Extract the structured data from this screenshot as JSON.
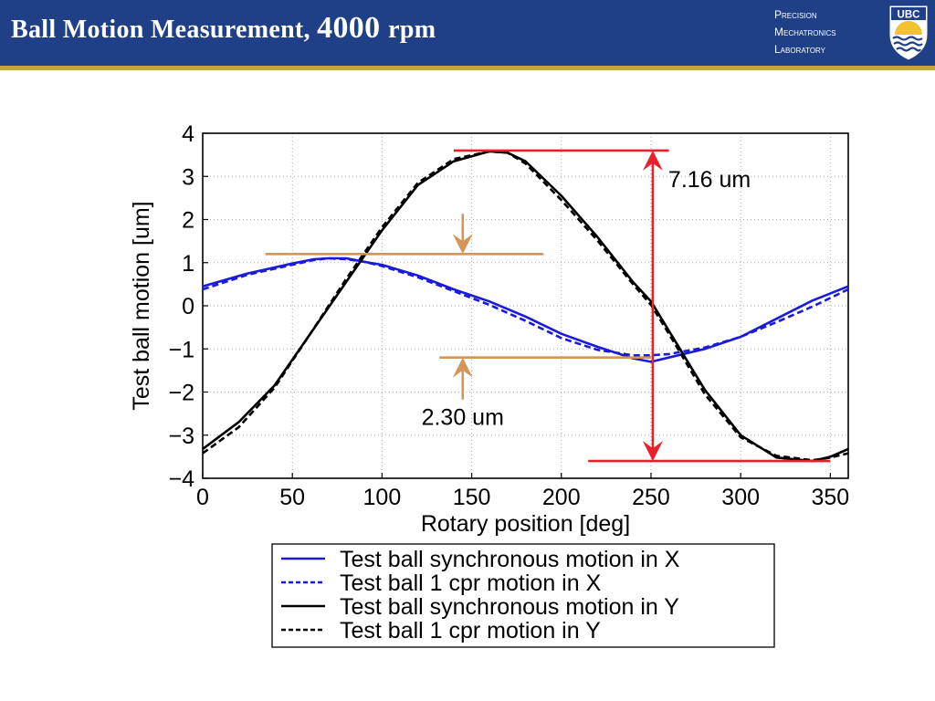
{
  "slide": {
    "title_main": "Ball Motion Measurement, ",
    "title_value": "4000 ",
    "title_unit": "rpm",
    "lab_lines": [
      "Precision",
      "Mechatronics",
      "Laboratory"
    ],
    "logo_text": "UBC",
    "colors": {
      "header_bg": "#1f3f86",
      "header_rule": "#c9a24a",
      "logo_gold": "#f2c230"
    }
  },
  "chart_data": {
    "type": "line",
    "xlabel": "Rotary position [deg]",
    "ylabel": "Test ball motion [um]",
    "xlim": [
      0,
      360
    ],
    "ylim": [
      -4,
      4
    ],
    "xticks": [
      0,
      50,
      100,
      150,
      200,
      250,
      300,
      350
    ],
    "yticks": [
      4,
      3,
      2,
      1,
      0,
      -1,
      -2,
      -3,
      -4
    ],
    "ytick_labels": [
      "4",
      "3",
      "2",
      "1",
      "0",
      "−1",
      "−2",
      "−3",
      "−4"
    ],
    "grid": true,
    "legend_position": "below",
    "series": [
      {
        "name": "Test ball synchronous motion in X",
        "color": "#1a1adb",
        "dash": "solid",
        "x": [
          0,
          25,
          50,
          62,
          70,
          80,
          90,
          100,
          120,
          140,
          160,
          180,
          200,
          220,
          240,
          250,
          260,
          280,
          300,
          320,
          340,
          360
        ],
        "y": [
          0.45,
          0.75,
          0.98,
          1.08,
          1.1,
          1.1,
          1.02,
          0.95,
          0.7,
          0.38,
          0.1,
          -0.25,
          -0.65,
          -0.95,
          -1.22,
          -1.3,
          -1.2,
          -1.0,
          -0.72,
          -0.3,
          0.12,
          0.45
        ]
      },
      {
        "name": "Test ball 1 cpr motion in X",
        "color": "#1a1adb",
        "dash": "dashed",
        "x": [
          0,
          25,
          50,
          62,
          70,
          80,
          90,
          100,
          120,
          140,
          160,
          180,
          200,
          220,
          240,
          250,
          260,
          280,
          300,
          320,
          340,
          360
        ],
        "y": [
          0.38,
          0.72,
          0.95,
          1.06,
          1.1,
          1.08,
          1.02,
          0.92,
          0.66,
          0.34,
          0.02,
          -0.35,
          -0.75,
          -1.02,
          -1.15,
          -1.15,
          -1.12,
          -0.97,
          -0.72,
          -0.38,
          -0.02,
          0.38
        ]
      },
      {
        "name": "Test ball synchronous motion in Y",
        "color": "#000000",
        "dash": "solid",
        "x": [
          0,
          20,
          40,
          60,
          80,
          100,
          120,
          140,
          160,
          170,
          180,
          200,
          220,
          240,
          250,
          260,
          280,
          300,
          320,
          340,
          350,
          360
        ],
        "y": [
          -3.32,
          -2.7,
          -1.85,
          -0.65,
          0.55,
          1.75,
          2.8,
          3.35,
          3.58,
          3.55,
          3.35,
          2.55,
          1.6,
          0.55,
          0.1,
          -0.58,
          -1.95,
          -3.0,
          -3.52,
          -3.6,
          -3.5,
          -3.32
        ]
      },
      {
        "name": "Test ball 1 cpr motion in Y",
        "color": "#000000",
        "dash": "dashed",
        "x": [
          0,
          20,
          40,
          60,
          80,
          100,
          120,
          140,
          160,
          170,
          180,
          200,
          220,
          240,
          250,
          260,
          280,
          300,
          320,
          340,
          350,
          360
        ],
        "y": [
          -3.42,
          -2.82,
          -1.9,
          -0.65,
          0.62,
          1.82,
          2.85,
          3.4,
          3.58,
          3.55,
          3.3,
          2.45,
          1.52,
          0.5,
          0.02,
          -0.65,
          -2.05,
          -3.05,
          -3.48,
          -3.58,
          -3.52,
          -3.42
        ]
      }
    ],
    "annotations": {
      "y_range": {
        "label": "7.16 um",
        "color": "#e8202a",
        "top": {
          "x1": 140,
          "x2": 260,
          "y": 3.6
        },
        "bottom": {
          "x1": 215,
          "x2": 350,
          "y": -3.6
        },
        "arrow_x": 251
      },
      "x_range": {
        "label": "2.30 um",
        "color": "#d4955a",
        "top": {
          "x1": 35,
          "x2": 190,
          "y": 1.2
        },
        "bottom": {
          "x1": 132,
          "x2": 250,
          "y": -1.2
        },
        "arrow_x": 145
      }
    }
  }
}
